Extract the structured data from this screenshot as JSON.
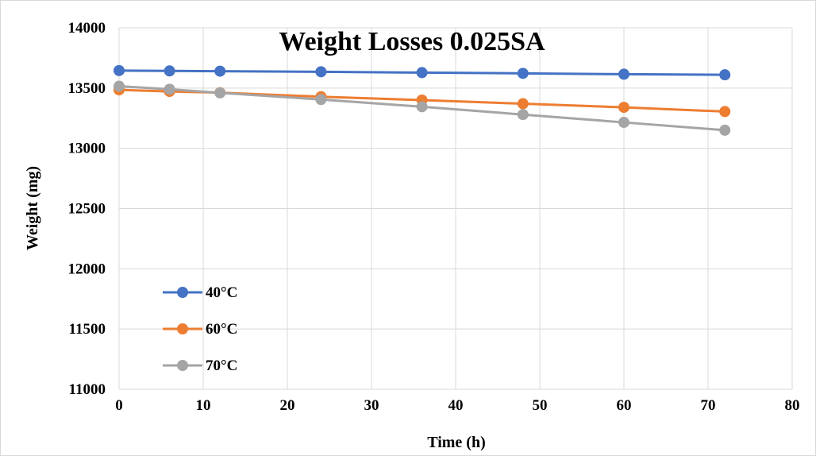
{
  "chart_data": {
    "type": "line",
    "title": "Weight Losses 0.025SA",
    "xlabel": "Time (h)",
    "ylabel": "Weight (mg)",
    "xlim": [
      0,
      80
    ],
    "ylim": [
      11000,
      14000
    ],
    "x_ticks": [
      0,
      10,
      20,
      30,
      40,
      50,
      60,
      70,
      80
    ],
    "y_ticks": [
      11000,
      11500,
      12000,
      12500,
      13000,
      13500,
      14000
    ],
    "grid": true,
    "legend_position": "bottom-left",
    "x": [
      0,
      6,
      12,
      24,
      36,
      48,
      60,
      72
    ],
    "series": [
      {
        "name": "40°C",
        "color": "#4472C4",
        "values": [
          13645,
          13642,
          13640,
          13635,
          13628,
          13622,
          13615,
          13610
        ]
      },
      {
        "name": "60°C",
        "color": "#ED7D31",
        "values": [
          13485,
          13472,
          13462,
          13428,
          13400,
          13370,
          13340,
          13305
        ]
      },
      {
        "name": "70°C",
        "color": "#A5A5A5",
        "values": [
          13515,
          13490,
          13460,
          13405,
          13345,
          13280,
          13215,
          13150
        ]
      }
    ]
  }
}
